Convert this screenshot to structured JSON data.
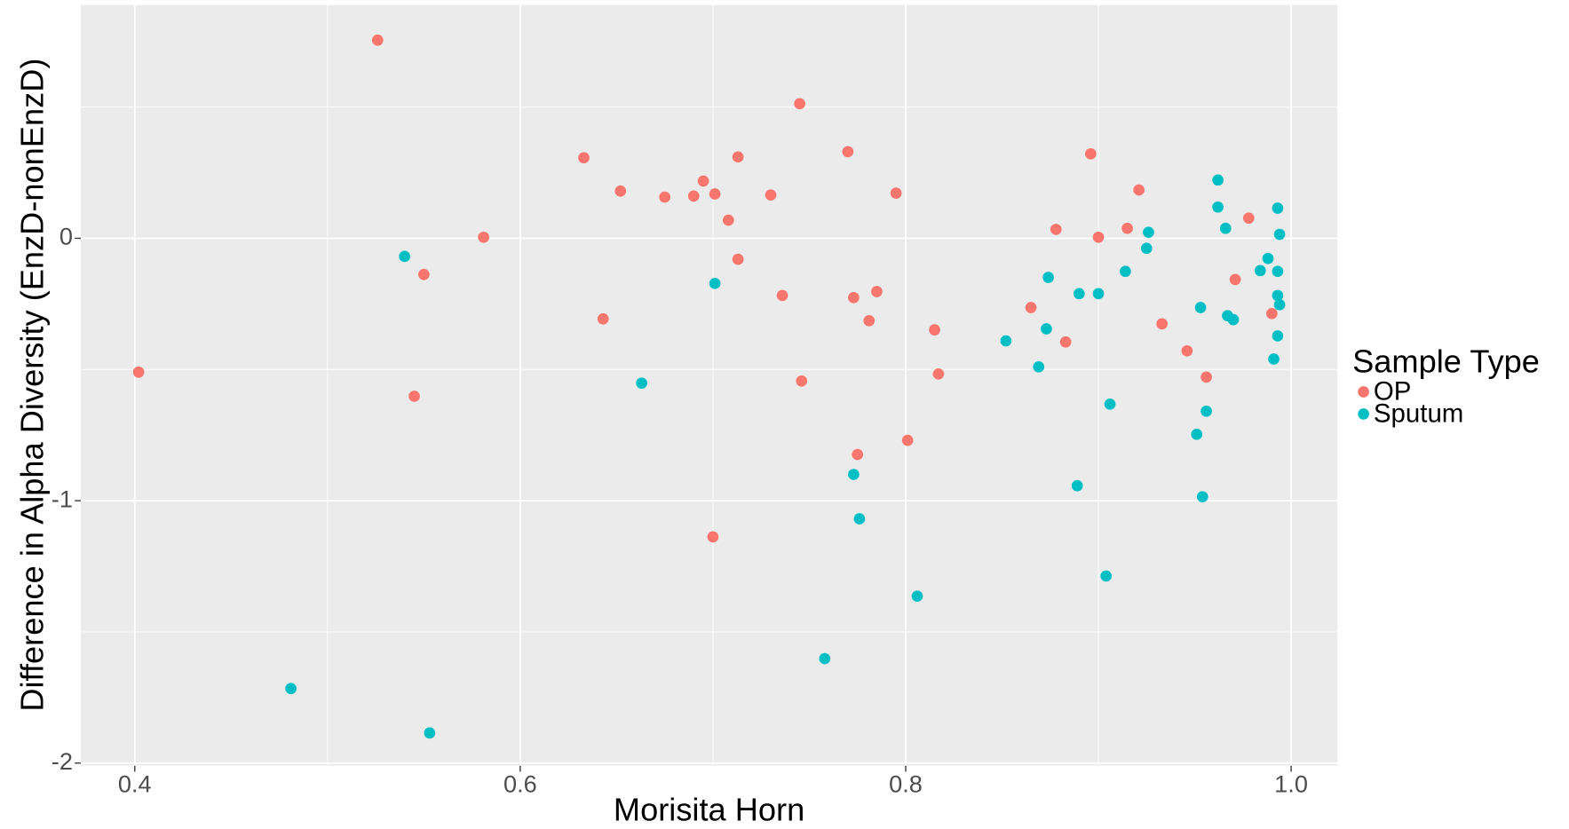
{
  "chart_data": {
    "type": "scatter",
    "xlabel": "Morisita Horn",
    "ylabel": "Difference in Alpha Diversity (EnzD-nonEnzD)",
    "legend_title": "Sample Type",
    "legend_position": "right",
    "grid": true,
    "xlim": [
      0.372,
      1.024
    ],
    "ylim": [
      -2.01,
      0.889
    ],
    "xticks": [
      0.4,
      0.6,
      0.8,
      {
        "value": 1,
        "label": "1.0"
      }
    ],
    "yticks": [
      -2,
      -1,
      0
    ],
    "series": [
      {
        "name": "OP",
        "color": "#F8766D",
        "x": [
          0.526,
          0.745,
          0.633,
          0.713,
          0.77,
          0.896,
          0.695,
          0.652,
          0.675,
          0.69,
          0.701,
          0.73,
          0.795,
          0.921,
          0.708,
          0.915,
          0.878,
          0.9,
          0.581,
          0.978,
          0.713,
          0.55,
          0.971,
          0.736,
          0.773,
          0.785,
          0.865,
          0.643,
          0.781,
          0.933,
          0.99,
          0.815,
          0.883,
          0.946,
          0.402,
          0.817,
          0.956,
          0.746,
          0.545,
          0.801,
          0.775,
          0.7
        ],
        "values": [
          0.755,
          0.513,
          0.307,
          0.31,
          0.33,
          0.322,
          0.218,
          0.18,
          0.157,
          0.161,
          0.169,
          0.165,
          0.172,
          0.184,
          0.069,
          0.038,
          0.034,
          0.004,
          0.004,
          0.077,
          -0.08,
          -0.138,
          -0.157,
          -0.218,
          -0.226,
          -0.203,
          -0.264,
          -0.307,
          -0.314,
          -0.326,
          -0.287,
          -0.349,
          -0.395,
          -0.429,
          -0.51,
          -0.517,
          -0.529,
          -0.544,
          -0.602,
          -0.77,
          -0.824,
          -1.138
        ]
      },
      {
        "name": "Sputum",
        "color": "#00BFC4",
        "x": [
          0.962,
          0.962,
          0.993,
          0.926,
          0.966,
          0.994,
          0.925,
          0.54,
          0.988,
          0.874,
          0.914,
          0.984,
          0.993,
          0.701,
          0.89,
          0.9,
          0.993,
          0.994,
          0.953,
          0.967,
          0.97,
          0.873,
          0.993,
          0.852,
          0.991,
          0.869,
          0.663,
          0.906,
          0.956,
          0.951,
          0.773,
          0.889,
          0.954,
          0.776,
          0.904,
          0.806,
          0.758,
          0.481,
          0.553
        ],
        "values": [
          0.222,
          0.119,
          0.115,
          0.023,
          0.038,
          0.015,
          -0.038,
          -0.069,
          -0.077,
          -0.149,
          -0.126,
          -0.123,
          -0.126,
          -0.172,
          -0.211,
          -0.211,
          -0.218,
          -0.253,
          -0.264,
          -0.295,
          -0.31,
          -0.345,
          -0.372,
          -0.391,
          -0.46,
          -0.49,
          -0.552,
          -0.632,
          -0.659,
          -0.747,
          -0.9,
          -0.943,
          -0.985,
          -1.069,
          -1.287,
          -1.364,
          -1.602,
          -1.716,
          -1.885
        ]
      }
    ]
  }
}
